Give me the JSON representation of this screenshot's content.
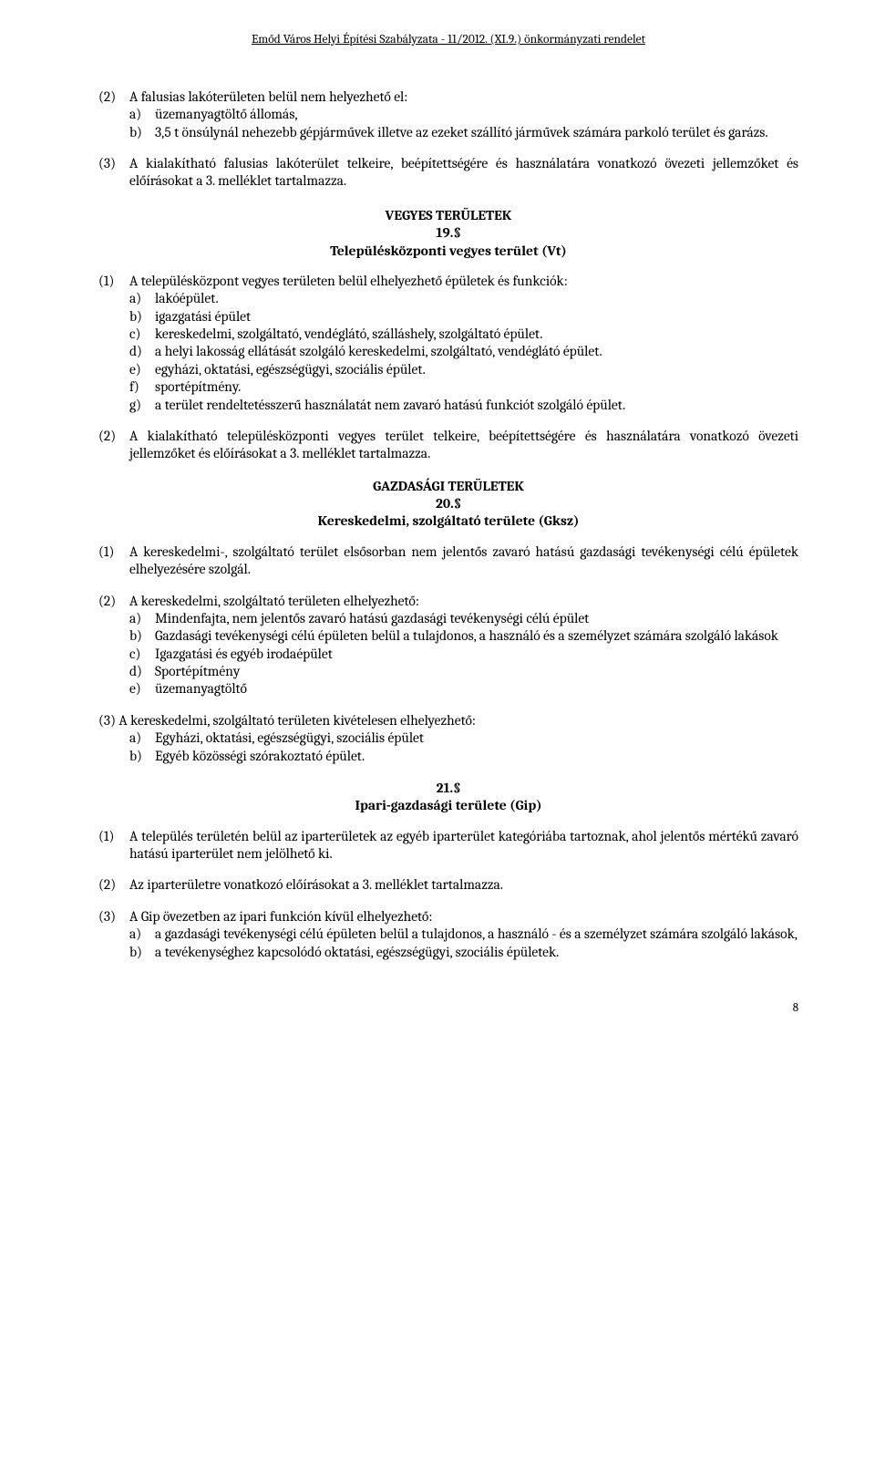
{
  "header": "Emőd Város Helyi Építési Szabályzata - 11/2012. (XI.9.) önkormányzati rendelet",
  "s1": {
    "p2": {
      "lead": "A falusias lakóterületen belül nem helyezhető el:",
      "a": "üzemanyagtöltő állomás,",
      "b": "3,5 t önsúlynál nehezebb gépjárművek illetve az ezeket szállító járművek számára parkoló terület és garázs."
    },
    "p3": "A kialakítható falusias lakóterület telkeire, beépítettségére és használatára vonatkozó övezeti jellemzőket és előírásokat a 3. melléklet tartalmazza."
  },
  "h1": {
    "a": "VEGYES TERÜLETEK",
    "b": "19.§",
    "c": "Településközponti vegyes terület (Vt)"
  },
  "s2": {
    "p1": {
      "lead": "A településközpont vegyes területen belül elhelyezhető épületek és funkciók:",
      "a": "lakóépület.",
      "b": "igazgatási épület",
      "c": "kereskedelmi, szolgáltató, vendéglátó, szálláshely, szolgáltató épület.",
      "d": "a helyi lakosság ellátását szolgáló kereskedelmi, szolgáltató, vendéglátó épület.",
      "e": "egyházi, oktatási, egészségügyi, szociális épület.",
      "f": "sportépítmény.",
      "g": "a terület rendeltetésszerű használatát nem zavaró hatású funkciót szolgáló épület."
    },
    "p2": "A kialakítható településközponti vegyes terület telkeire, beépítettségére és használatára vonatkozó övezeti jellemzőket és előírásokat a 3. melléklet tartalmazza."
  },
  "h2": {
    "a": "GAZDASÁGI TERÜLETEK",
    "b": "20.§",
    "c": "Kereskedelmi, szolgáltató területe (Gksz)"
  },
  "s3": {
    "p1": "A kereskedelmi-, szolgáltató terület elsősorban nem jelentős zavaró hatású gazdasági tevékenységi célú épületek elhelyezésére szolgál.",
    "p2": {
      "lead": "A kereskedelmi, szolgáltató területen elhelyezhető:",
      "a": "Mindenfajta, nem jelentős zavaró hatású gazdasági tevékenységi célú épület",
      "b": "Gazdasági tevékenységi célú épületen belül a tulajdonos, a használó és a személyzet számára szolgáló lakások",
      "c": "Igazgatási és egyéb irodaépület",
      "d": "Sportépítmény",
      "e": "üzemanyagtöltő"
    },
    "p3": {
      "lead": "(3) A kereskedelmi, szolgáltató területen kivételesen elhelyezhető:",
      "a": "Egyházi, oktatási, egészségügyi, szociális épület",
      "b": "Egyéb közösségi szórakoztató épület."
    }
  },
  "h3": {
    "a": "21.§",
    "b": "Ipari-gazdasági területe (Gip)"
  },
  "s4": {
    "p1": "A település területén belül az iparterületek az egyéb iparterület kategóriába tartoznak, ahol jelentős mértékű zavaró hatású iparterület nem jelölhető ki.",
    "p2": "Az iparterületre vonatkozó előírásokat a 3. melléklet tartalmazza.",
    "p3": {
      "lead": "A Gip övezetben az ipari funkción kívül elhelyezhető:",
      "a": "a gazdasági tevékenységi célú épületen belül a tulajdonos, a használó - és a személyzet számára szolgáló lakások,",
      "b": "a tevékenységhez kapcsolódó oktatási, egészségügyi, szociális épületek."
    }
  },
  "page": "8"
}
